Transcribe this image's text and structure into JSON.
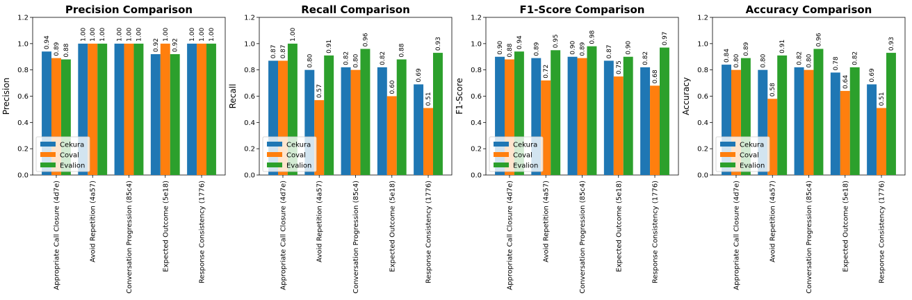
{
  "chart_data": [
    {
      "type": "bar",
      "title": "Precision Comparison",
      "xlabel": "",
      "ylabel": "Precision",
      "ylim": [
        0,
        1.2
      ],
      "yticks": [
        "0.0",
        "0.2",
        "0.4",
        "0.6",
        "0.8",
        "1.0",
        "1.2"
      ],
      "categories": [
        "Appropriate Call Closure (4d7e)",
        "Avoid Repetition (4a57)",
        "Conversation Progression (85c4)",
        "Expected Outcome (5e18)",
        "Response Consistency (1776)"
      ],
      "series": [
        {
          "name": "Cekura",
          "color": "#1f77b4",
          "values": [
            0.94,
            1.0,
            1.0,
            0.92,
            1.0
          ],
          "labels": [
            "0.94",
            "1.00",
            "1.00",
            "0.92",
            "1.00"
          ]
        },
        {
          "name": "Coval",
          "color": "#ff7f0e",
          "values": [
            0.89,
            1.0,
            1.0,
            1.0,
            1.0
          ],
          "labels": [
            "0.89",
            "1.00",
            "1.00",
            "1.00",
            "1.00"
          ]
        },
        {
          "name": "Evalion",
          "color": "#2ca02c",
          "values": [
            0.88,
            1.0,
            1.0,
            0.92,
            1.0
          ],
          "labels": [
            "0.88",
            "1.00",
            "1.00",
            "0.92",
            "1.00"
          ]
        }
      ],
      "legend": "lower-left",
      "grid": false
    },
    {
      "type": "bar",
      "title": "Recall Comparison",
      "xlabel": "",
      "ylabel": "Recall",
      "ylim": [
        0,
        1.2
      ],
      "yticks": [
        "0.0",
        "0.2",
        "0.4",
        "0.6",
        "0.8",
        "1.0",
        "1.2"
      ],
      "categories": [
        "Appropriate Call Closure (4d7e)",
        "Avoid Repetition (4a57)",
        "Conversation Progression (85c4)",
        "Expected Outcome (5e18)",
        "Response Consistency (1776)"
      ],
      "series": [
        {
          "name": "Cekura",
          "color": "#1f77b4",
          "values": [
            0.87,
            0.8,
            0.82,
            0.82,
            0.69
          ],
          "labels": [
            "0.87",
            "0.80",
            "0.82",
            "0.82",
            "0.69"
          ]
        },
        {
          "name": "Coval",
          "color": "#ff7f0e",
          "values": [
            0.87,
            0.57,
            0.8,
            0.6,
            0.51
          ],
          "labels": [
            "0.87",
            "0.57",
            "0.80",
            "0.60",
            "0.51"
          ]
        },
        {
          "name": "Evalion",
          "color": "#2ca02c",
          "values": [
            1.0,
            0.91,
            0.96,
            0.88,
            0.93
          ],
          "labels": [
            "1.00",
            "0.91",
            "0.96",
            "0.88",
            "0.93"
          ]
        }
      ],
      "legend": "lower-left",
      "grid": false
    },
    {
      "type": "bar",
      "title": "F1-Score Comparison",
      "xlabel": "",
      "ylabel": "F1-Score",
      "ylim": [
        0,
        1.2
      ],
      "yticks": [
        "0.0",
        "0.2",
        "0.4",
        "0.6",
        "0.8",
        "1.0",
        "1.2"
      ],
      "categories": [
        "Appropriate Call Closure (4d7e)",
        "Avoid Repetition (4a57)",
        "Conversation Progression (85c4)",
        "Expected Outcome (5e18)",
        "Response Consistency (1776)"
      ],
      "series": [
        {
          "name": "Cekura",
          "color": "#1f77b4",
          "values": [
            0.9,
            0.89,
            0.9,
            0.87,
            0.82
          ],
          "labels": [
            "0.90",
            "0.89",
            "0.90",
            "0.87",
            "0.82"
          ]
        },
        {
          "name": "Coval",
          "color": "#ff7f0e",
          "values": [
            0.88,
            0.72,
            0.89,
            0.75,
            0.68
          ],
          "labels": [
            "0.88",
            "0.72",
            "0.89",
            "0.75",
            "0.68"
          ]
        },
        {
          "name": "Evalion",
          "color": "#2ca02c",
          "values": [
            0.94,
            0.95,
            0.98,
            0.9,
            0.97
          ],
          "labels": [
            "0.94",
            "0.95",
            "0.98",
            "0.90",
            "0.97"
          ]
        }
      ],
      "legend": "lower-left",
      "grid": false
    },
    {
      "type": "bar",
      "title": "Accuracy Comparison",
      "xlabel": "",
      "ylabel": "Accuracy",
      "ylim": [
        0,
        1.2
      ],
      "yticks": [
        "0.0",
        "0.2",
        "0.4",
        "0.6",
        "0.8",
        "1.0",
        "1.2"
      ],
      "categories": [
        "Appropriate Call Closure (4d7e)",
        "Avoid Repetition (4a57)",
        "Conversation Progression (85c4)",
        "Expected Outcome (5e18)",
        "Response Consistency (1776)"
      ],
      "series": [
        {
          "name": "Cekura",
          "color": "#1f77b4",
          "values": [
            0.84,
            0.8,
            0.82,
            0.78,
            0.69
          ],
          "labels": [
            "0.84",
            "0.80",
            "0.82",
            "0.78",
            "0.69"
          ]
        },
        {
          "name": "Coval",
          "color": "#ff7f0e",
          "values": [
            0.8,
            0.58,
            0.8,
            0.64,
            0.51
          ],
          "labels": [
            "0.80",
            "0.58",
            "0.80",
            "0.64",
            "0.51"
          ]
        },
        {
          "name": "Evalion",
          "color": "#2ca02c",
          "values": [
            0.89,
            0.91,
            0.96,
            0.82,
            0.93
          ],
          "labels": [
            "0.89",
            "0.91",
            "0.96",
            "0.82",
            "0.93"
          ]
        }
      ],
      "legend": "lower-left",
      "grid": false
    }
  ]
}
